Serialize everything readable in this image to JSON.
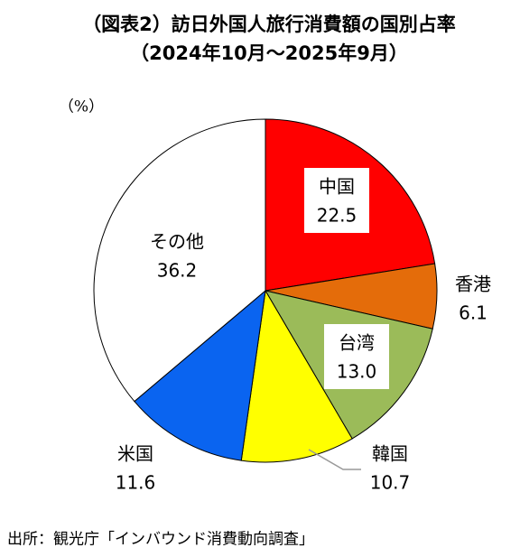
{
  "chart_data": {
    "type": "pie",
    "title": "（図表2）訪日外国人旅行消費額の国別占率",
    "subtitle": "（2024年10月～2025年9月）",
    "unit_label": "（%）",
    "categories": [
      "中国",
      "香港",
      "台湾",
      "韓国",
      "米国",
      "その他"
    ],
    "values": [
      22.5,
      6.1,
      13.0,
      10.7,
      11.6,
      36.2
    ],
    "value_labels": [
      "22.5",
      "6.1",
      "13.0",
      "10.7",
      "11.6",
      "36.2"
    ],
    "colors": [
      "#ff0000",
      "#e46c0a",
      "#9bbb59",
      "#ffff00",
      "#0a64f0",
      "#ffffff"
    ],
    "source": "出所：観光庁「インバウンド消費動向調査」"
  }
}
